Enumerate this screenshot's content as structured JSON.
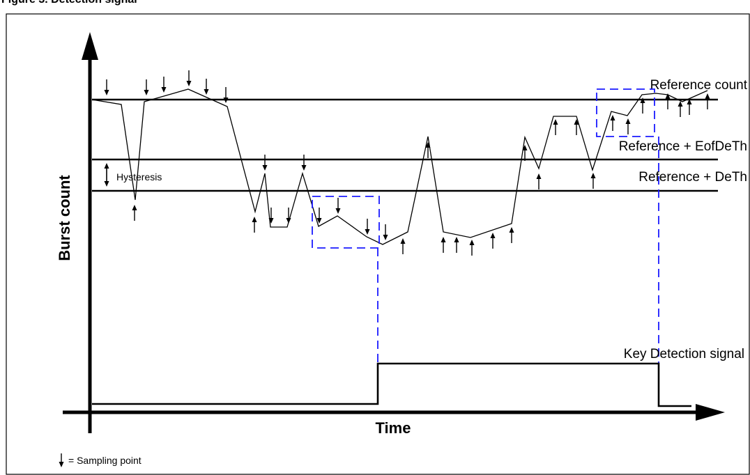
{
  "figure": {
    "title": "Figure 3. Detection signal"
  },
  "axes": {
    "y_title": "Burst count",
    "x_title": "Time"
  },
  "levels": {
    "reference": "Reference count",
    "eof_deth": "Reference + EofDeTh",
    "deth": "Reference + DeTh",
    "hysteresis": "Hysteresis"
  },
  "signal": {
    "key_detection": "Key Detection signal"
  },
  "legend": {
    "sampling_point": "= Sampling point"
  },
  "colors": {
    "line": "#000000",
    "highlight": "#1a1aff",
    "background": "#ffffff"
  },
  "icons": {
    "sampling_arrow": "down-arrow-icon",
    "hysteresis_arrow": "double-arrow-icon"
  }
}
